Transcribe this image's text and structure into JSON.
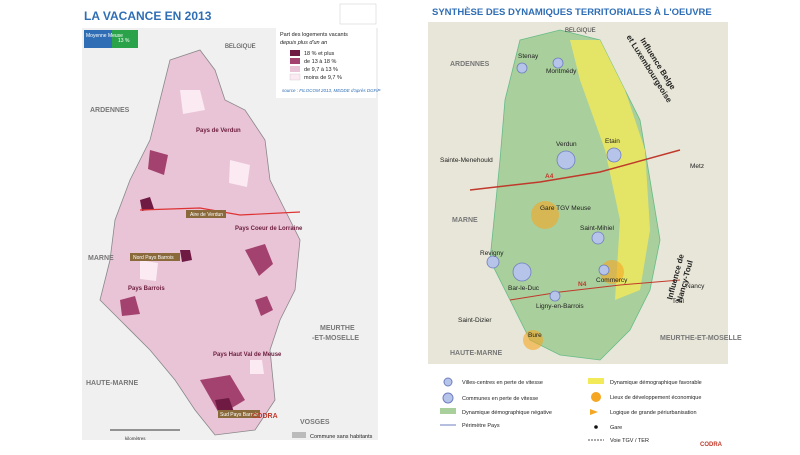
{
  "left_map": {
    "title": "LA VACANCE EN 2013",
    "average": {
      "label": "Moyenne Meuse",
      "value": "13 %"
    },
    "legend": {
      "title": "Part des logements vacants",
      "subtitle": "depuis plus d'un an",
      "items": [
        "18 % et plus",
        "de 13 à 18 %",
        "de 9,7 à 13 %",
        "moins de 9,7 %"
      ],
      "source": "source : FILOCOM 2013, MEDDE d'après DGFiP",
      "no_inhabitants": "Commune sans habitants",
      "scale": "kilomètres",
      "brand": "CODRA"
    },
    "departments": [
      "BELGIQUE",
      "ARDENNES",
      "MARNE",
      "HAUTE-MARNE",
      "MEURTHE",
      "-ET-MOSELLE",
      "VOSGES"
    ],
    "pays": [
      "Pays de Verdun",
      "Aire de Verdun",
      "Nord Pays Barrois",
      "Pays Barrois",
      "Pays Coeur de Lorraine",
      "Pays Haut Val de Meuse",
      "Sud Pays Barrois"
    ]
  },
  "right_map": {
    "title": "SYNTHÈSE DES DYNAMIQUES TERRITORIALES À L'OEUVRE",
    "cities": [
      "Stenay",
      "Montmédy",
      "Verdun",
      "Etain",
      "Metz",
      "Gare TGV Meuse",
      "Saint-Mihiel",
      "Revigny",
      "Bar-le-Duc",
      "Commercy",
      "Ligny-en-Barrois",
      "Nancy",
      "Toul",
      "Saint-Dizier",
      "Bure",
      "Sainte-Menehould"
    ],
    "roads": [
      "A4",
      "N4"
    ],
    "departments": [
      "BELGIQUE",
      "ARDENNES",
      "MARNE",
      "HAUTE-MARNE",
      "MEURTHE-ET-MOSELLE"
    ],
    "influences": [
      "Influence Belge",
      "et Luxembourgeoise",
      "Influence de",
      "Nancy-Toul"
    ],
    "legend": [
      "Villes-centres en perte de vitesse",
      "Communes en perte de vitesse",
      "Dynamique démographique négative",
      "Périmètre Pays",
      "Dynamique démographique favorable",
      "Lieux de développement économique",
      "Logique de grande périurbanisation",
      "Gare",
      "Voie TGV / TER"
    ],
    "brand": "CODRA"
  }
}
